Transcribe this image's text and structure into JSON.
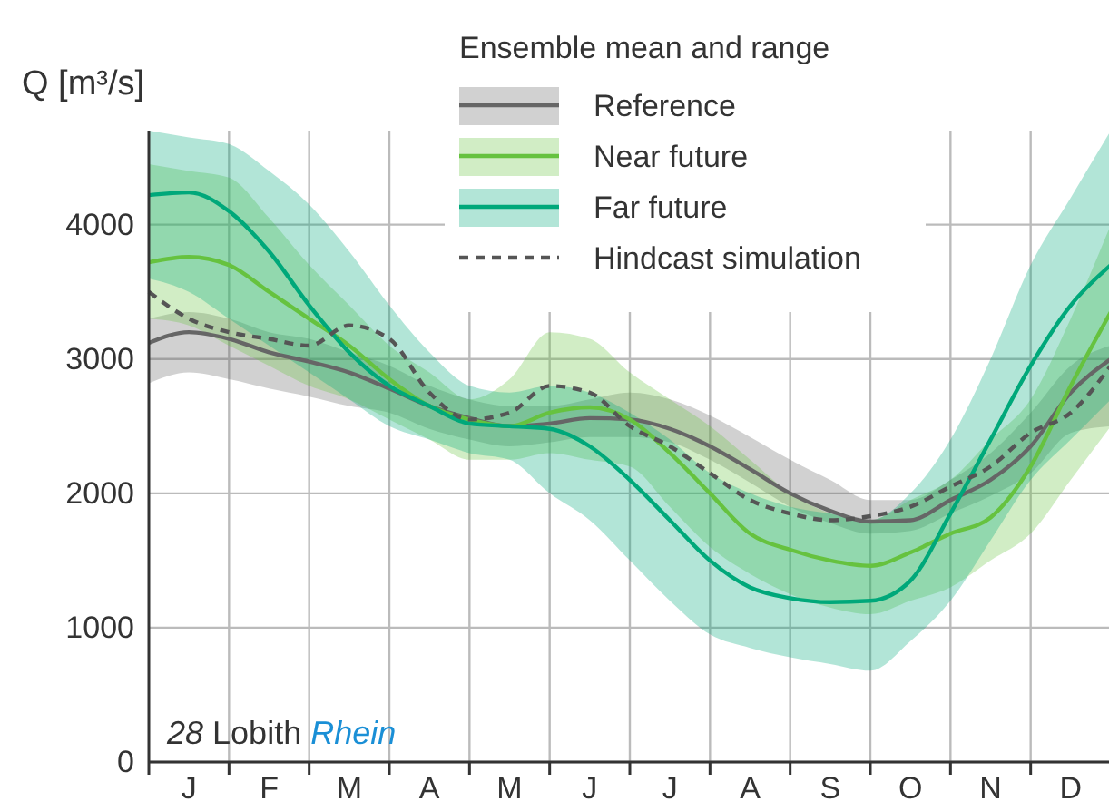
{
  "chart_data": {
    "type": "line",
    "ylabel": "Q [m³/s]",
    "legend_title": "Ensemble mean and range",
    "legend": "top right",
    "grid": true,
    "categories": [
      null,
      "J",
      null,
      "F",
      null,
      "M",
      null,
      "A",
      null,
      "M",
      null,
      "J",
      null,
      "J",
      null,
      "A",
      null,
      "S",
      null,
      "O",
      null,
      "N",
      null,
      "D",
      null
    ],
    "ylim": [
      0,
      4700
    ],
    "yticks": [
      0,
      1000,
      2000,
      3000,
      4000
    ],
    "annotations": [
      "28 Lobith Rhein"
    ],
    "series": [
      {
        "name": "Reference",
        "color": "#666666",
        "line_style": "solid",
        "values": [
          3120,
          3200,
          3150,
          3050,
          2980,
          2900,
          2780,
          2650,
          2560,
          2500,
          2520,
          2560,
          2550,
          2480,
          2350,
          2180,
          2000,
          1870,
          1790,
          1800,
          1950,
          2100,
          2350,
          2750,
          3000
        ],
        "lower": [
          2820,
          2900,
          2850,
          2780,
          2720,
          2650,
          2600,
          2480,
          2400,
          2350,
          2380,
          2420,
          2420,
          2380,
          2250,
          2080,
          1900,
          1780,
          1700,
          1720,
          1850,
          1980,
          2150,
          2450,
          2500
        ],
        "upper": [
          3300,
          3350,
          3300,
          3200,
          3150,
          3050,
          2950,
          2800,
          2700,
          2650,
          2650,
          2700,
          2750,
          2700,
          2580,
          2420,
          2250,
          2100,
          1950,
          1950,
          2100,
          2300,
          2600,
          2950,
          3100
        ]
      },
      {
        "name": "Near future",
        "color": "#66c23f",
        "line_style": "solid",
        "values": [
          3720,
          3760,
          3700,
          3500,
          3300,
          3100,
          2850,
          2650,
          2550,
          2500,
          2600,
          2640,
          2550,
          2300,
          2000,
          1700,
          1580,
          1500,
          1460,
          1560,
          1700,
          1820,
          2200,
          2800,
          3350
        ],
        "lower": [
          3300,
          3250,
          3100,
          2950,
          2800,
          2700,
          2550,
          2400,
          2250,
          2250,
          2300,
          2250,
          2200,
          1900,
          1600,
          1400,
          1250,
          1150,
          1100,
          1200,
          1300,
          1500,
          1700,
          2100,
          2500
        ],
        "upper": [
          4450,
          4400,
          4350,
          4050,
          3700,
          3400,
          3100,
          2900,
          2700,
          2850,
          3200,
          3150,
          2900,
          2700,
          2500,
          2250,
          2000,
          1850,
          1800,
          1950,
          2100,
          2400,
          2700,
          3300,
          4000
        ]
      },
      {
        "name": "Far future",
        "color": "#00a87a",
        "line_style": "solid",
        "values": [
          4220,
          4240,
          4100,
          3800,
          3400,
          3050,
          2800,
          2650,
          2520,
          2500,
          2480,
          2350,
          2100,
          1800,
          1500,
          1300,
          1220,
          1190,
          1200,
          1350,
          1850,
          2400,
          2950,
          3400,
          3700
        ],
        "lower": [
          3600,
          3500,
          3300,
          3100,
          2900,
          2700,
          2500,
          2400,
          2300,
          2250,
          2000,
          1800,
          1500,
          1200,
          950,
          850,
          780,
          730,
          680,
          900,
          1200,
          1650,
          2100,
          2400,
          2700
        ],
        "upper": [
          4700,
          4650,
          4600,
          4400,
          4150,
          3800,
          3400,
          3050,
          2800,
          2750,
          2800,
          2750,
          2600,
          2400,
          2150,
          2000,
          1900,
          1850,
          1800,
          2000,
          2400,
          3000,
          3700,
          4200,
          4700
        ]
      },
      {
        "name": "Hindcast simulation",
        "color": "#555555",
        "line_style": "dashed",
        "values": [
          3500,
          3300,
          3200,
          3150,
          3100,
          3250,
          3150,
          2750,
          2550,
          2600,
          2800,
          2750,
          2500,
          2350,
          2150,
          1950,
          1850,
          1800,
          1830,
          1900,
          2050,
          2200,
          2450,
          2600,
          2950
        ]
      }
    ]
  }
}
